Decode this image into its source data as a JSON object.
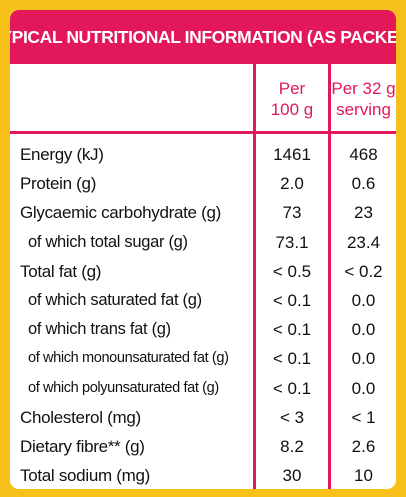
{
  "title": "TYPICAL NUTRITIONAL INFORMATION (AS PACKED)",
  "columns": {
    "per100": {
      "line1": "Per",
      "line2": "100 g"
    },
    "perServing": {
      "line1": "Per 32 g",
      "line2": "serving"
    }
  },
  "rows": [
    {
      "label": "Energy (kJ)",
      "per100": "1461",
      "perServing": "468"
    },
    {
      "label": "Protein (g)",
      "per100": "2.0",
      "perServing": "0.6"
    },
    {
      "label": "Glycaemic carbohydrate (g)",
      "per100": "73",
      "perServing": "23"
    },
    {
      "label": "of which total sugar (g)",
      "per100": "73.1",
      "perServing": "23.4"
    },
    {
      "label": "Total fat (g)",
      "per100": "< 0.5",
      "perServing": "< 0.2"
    },
    {
      "label": "of which saturated fat (g)",
      "per100": "< 0.1",
      "perServing": "0.0"
    },
    {
      "label": "of which trans fat (g)",
      "per100": "< 0.1",
      "perServing": "0.0"
    },
    {
      "label": "of which monounsaturated fat (g)",
      "per100": "< 0.1",
      "perServing": "0.0"
    },
    {
      "label": "of which polyunsaturated fat (g)",
      "per100": "< 0.1",
      "perServing": "0.0"
    },
    {
      "label": "Cholesterol (mg)",
      "per100": "< 3",
      "perServing": "< 1"
    },
    {
      "label": "Dietary fibre** (g)",
      "per100": "8.2",
      "perServing": "2.6"
    },
    {
      "label": "Total sodium (mg)",
      "per100": "30",
      "perServing": "10"
    }
  ],
  "colors": {
    "accent": "#e2185a",
    "border": "#f7c11a"
  }
}
